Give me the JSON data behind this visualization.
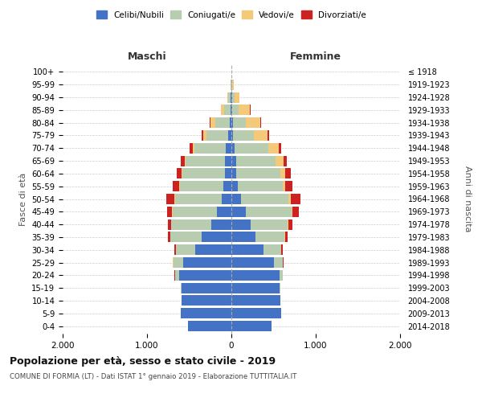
{
  "age_groups": [
    "0-4",
    "5-9",
    "10-14",
    "15-19",
    "20-24",
    "25-29",
    "30-34",
    "35-39",
    "40-44",
    "45-49",
    "50-54",
    "55-59",
    "60-64",
    "65-69",
    "70-74",
    "75-79",
    "80-84",
    "85-89",
    "90-94",
    "95-99",
    "100+"
  ],
  "birth_years": [
    "2014-2018",
    "2009-2013",
    "2004-2008",
    "1999-2003",
    "1994-1998",
    "1989-1993",
    "1984-1988",
    "1979-1983",
    "1974-1978",
    "1969-1973",
    "1964-1968",
    "1959-1963",
    "1954-1958",
    "1949-1953",
    "1944-1948",
    "1939-1943",
    "1934-1938",
    "1929-1933",
    "1924-1928",
    "1919-1923",
    "≤ 1918"
  ],
  "male": {
    "celibi": [
      510,
      600,
      590,
      590,
      620,
      570,
      430,
      350,
      240,
      170,
      110,
      100,
      80,
      80,
      70,
      40,
      20,
      10,
      5,
      2,
      0
    ],
    "coniugati": [
      0,
      0,
      2,
      10,
      50,
      120,
      230,
      370,
      470,
      530,
      560,
      510,
      500,
      460,
      370,
      260,
      170,
      80,
      30,
      8,
      2
    ],
    "vedovi": [
      0,
      0,
      0,
      0,
      0,
      5,
      1,
      2,
      3,
      5,
      5,
      5,
      10,
      15,
      20,
      30,
      55,
      30,
      15,
      4,
      1
    ],
    "divorziati": [
      0,
      0,
      0,
      0,
      2,
      5,
      15,
      30,
      40,
      55,
      95,
      80,
      55,
      45,
      35,
      20,
      10,
      5,
      2,
      0,
      0
    ]
  },
  "female": {
    "nubili": [
      480,
      590,
      580,
      570,
      570,
      500,
      380,
      290,
      230,
      170,
      110,
      80,
      60,
      55,
      35,
      20,
      15,
      10,
      5,
      2,
      0
    ],
    "coniugate": [
      0,
      0,
      2,
      10,
      40,
      110,
      210,
      340,
      440,
      540,
      570,
      530,
      520,
      470,
      400,
      250,
      160,
      80,
      30,
      10,
      2
    ],
    "vedove": [
      0,
      0,
      0,
      0,
      0,
      2,
      2,
      5,
      8,
      15,
      20,
      30,
      60,
      90,
      130,
      160,
      170,
      130,
      60,
      20,
      2
    ],
    "divorziate": [
      0,
      0,
      0,
      0,
      2,
      5,
      15,
      30,
      50,
      75,
      120,
      80,
      65,
      45,
      30,
      15,
      8,
      5,
      2,
      0,
      0
    ]
  },
  "colors": {
    "celibi_nubili": "#4472C4",
    "coniugati": "#B8CCB0",
    "vedovi": "#F5C97A",
    "divorziati": "#CC2222"
  },
  "title": "Popolazione per età, sesso e stato civile - 2019",
  "subtitle": "COMUNE DI FORMIA (LT) - Dati ISTAT 1° gennaio 2019 - Elaborazione TUTTITALIA.IT",
  "xlabel_left": "Maschi",
  "xlabel_right": "Femmine",
  "ylabel_left": "Fasce di età",
  "ylabel_right": "Anni di nascita",
  "xlim": 2000,
  "legend_labels": [
    "Celibi/Nubili",
    "Coniugati/e",
    "Vedovi/e",
    "Divorziati/e"
  ]
}
